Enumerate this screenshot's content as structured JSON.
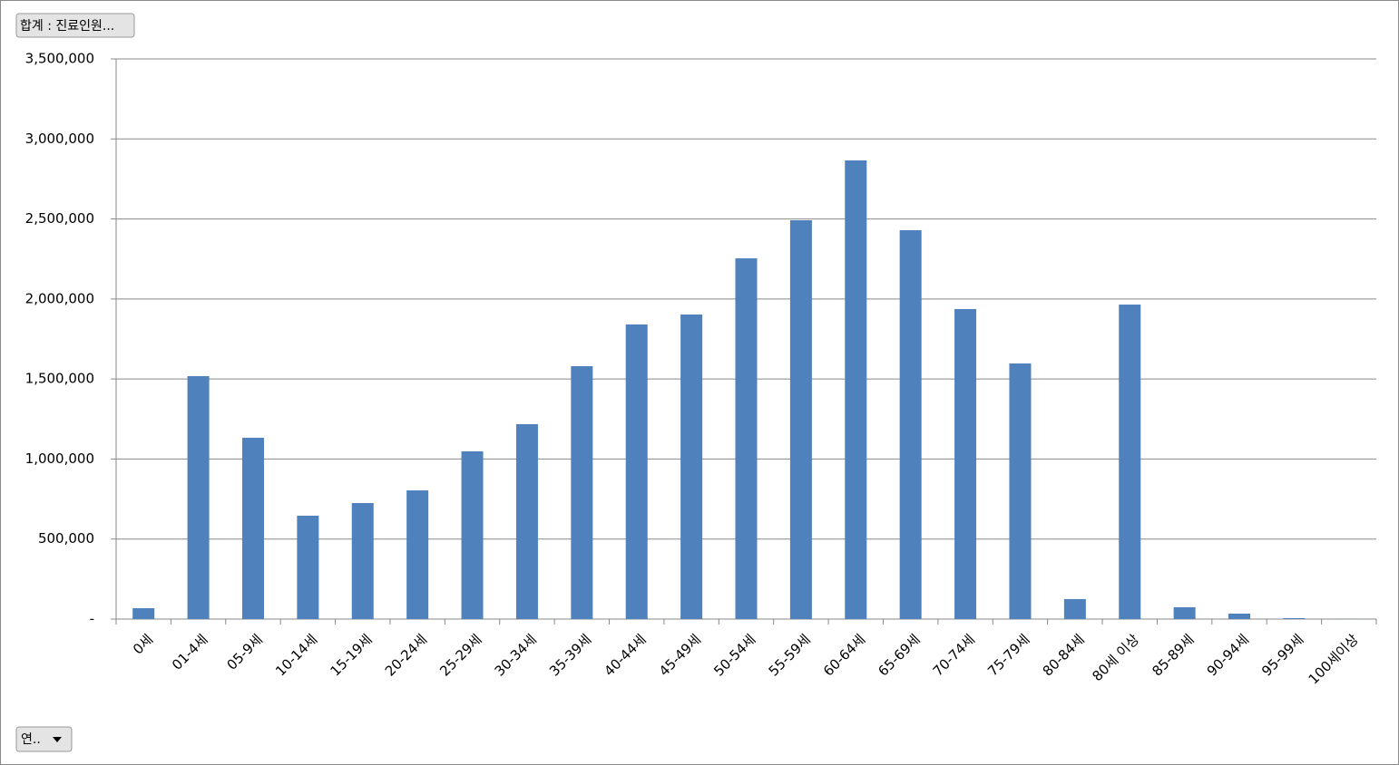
{
  "field_buttons": {
    "value_field": "합계 : 진료인원...",
    "axis_field": "연.."
  },
  "chart_data": {
    "type": "bar",
    "categories": [
      "0세",
      "01-4세",
      "05-9세",
      "10-14세",
      "15-19세",
      "20-24세",
      "25-29세",
      "30-34세",
      "35-39세",
      "40-44세",
      "45-49세",
      "50-54세",
      "55-59세",
      "60-64세",
      "65-69세",
      "70-74세",
      "75-79세",
      "80-84세",
      "80세 이상",
      "85-89세",
      "90-94세",
      "95-99세",
      "100세이상"
    ],
    "values": [
      68000,
      1518000,
      1133000,
      646000,
      725000,
      804000,
      1048000,
      1218000,
      1580000,
      1841000,
      1903000,
      2254000,
      2492000,
      2866000,
      2430000,
      1937000,
      1597000,
      125000,
      1965000,
      74000,
      34000,
      6000,
      1000
    ],
    "color": "#4f81bd",
    "ylim": [
      0,
      3500000
    ],
    "yticks": [
      {
        "value": 0,
        "label": "-"
      },
      {
        "value": 500000,
        "label": "500,000"
      },
      {
        "value": 1000000,
        "label": "1,000,000"
      },
      {
        "value": 1500000,
        "label": "1,500,000"
      },
      {
        "value": 2000000,
        "label": "2,000,000"
      },
      {
        "value": 2500000,
        "label": "2,500,000"
      },
      {
        "value": 3000000,
        "label": "3,000,000"
      },
      {
        "value": 3500000,
        "label": "3,500,000"
      }
    ],
    "grid": true
  }
}
